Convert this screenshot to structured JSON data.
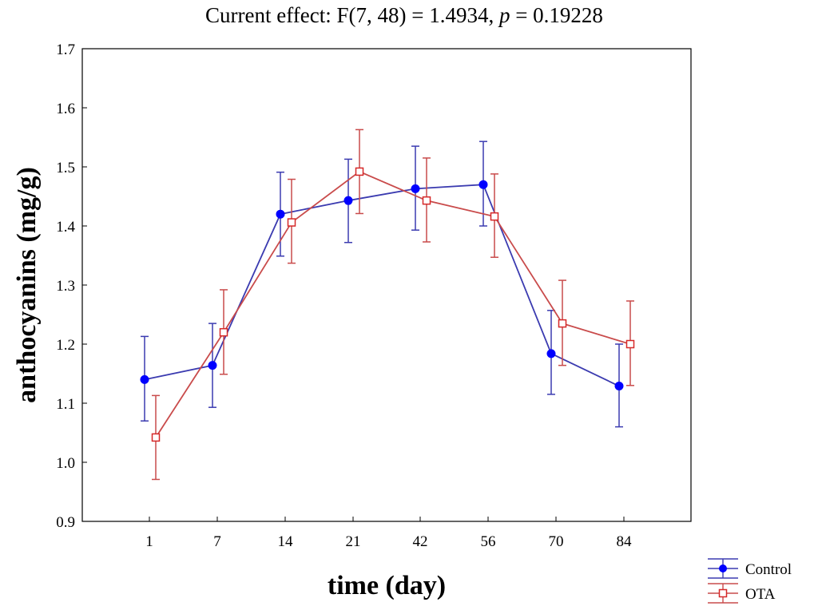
{
  "chart_data": {
    "type": "line",
    "title_prefix": "Current effect: F(7, 48) = 1.4934, ",
    "title_p": "p",
    "title_suffix": " = 0.19228",
    "xlabel": "time (day)",
    "ylabel": "anthocyanins (mg/g)",
    "categories": [
      "1",
      "7",
      "14",
      "21",
      "42",
      "56",
      "70",
      "84"
    ],
    "ylim": [
      0.9,
      1.7
    ],
    "yticks": [
      "0.9",
      "1.0",
      "1.1",
      "1.2",
      "1.3",
      "1.4",
      "1.5",
      "1.6",
      "1.7"
    ],
    "grid": false,
    "legend_position": "bottom-right, outside plot",
    "series": [
      {
        "name": "Control",
        "color": "#3b3bb0",
        "marker_color": "#0000ff",
        "marker": "filled-circle",
        "values": [
          1.14,
          1.164,
          1.42,
          1.443,
          1.463,
          1.47,
          1.184,
          1.129
        ],
        "error_low": [
          1.07,
          1.093,
          1.349,
          1.372,
          1.393,
          1.4,
          1.115,
          1.06
        ],
        "error_high": [
          1.213,
          1.235,
          1.491,
          1.513,
          1.535,
          1.543,
          1.257,
          1.2
        ]
      },
      {
        "name": "OTA",
        "color": "#c94b4b",
        "marker_color": "#d62828",
        "marker": "open-square",
        "values": [
          1.042,
          1.22,
          1.406,
          1.492,
          1.443,
          1.416,
          1.235,
          1.2
        ],
        "error_low": [
          0.971,
          1.149,
          1.337,
          1.421,
          1.373,
          1.347,
          1.164,
          1.13
        ],
        "error_high": [
          1.113,
          1.292,
          1.479,
          1.563,
          1.515,
          1.488,
          1.308,
          1.273
        ]
      }
    ]
  }
}
